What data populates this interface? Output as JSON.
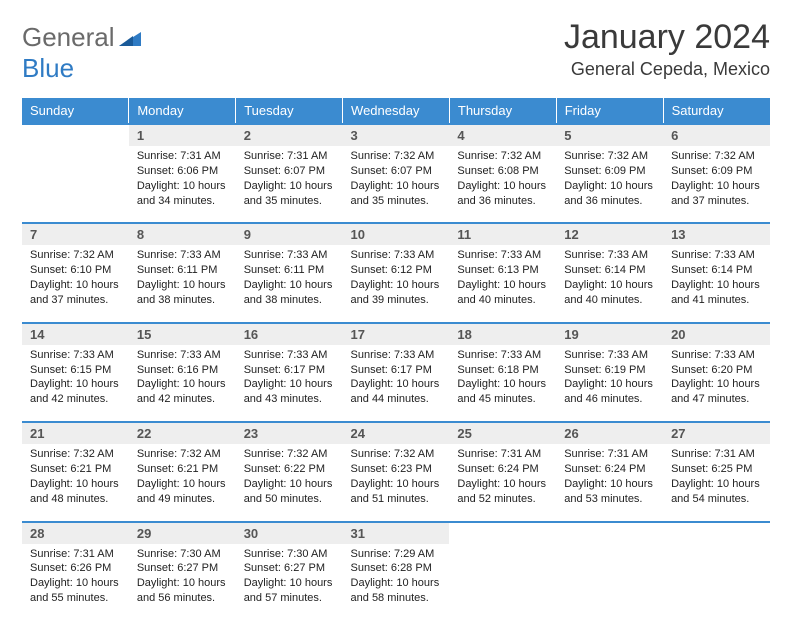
{
  "logo": {
    "text1": "General",
    "text2": "Blue"
  },
  "title": "January 2024",
  "location": "General Cepeda, Mexico",
  "colors": {
    "accent": "#3b8bd0",
    "header_bg": "#eeeeee",
    "text": "#222222",
    "logo_gray": "#6a6a6a",
    "logo_blue": "#2f7bc4"
  },
  "day_headers": [
    "Sunday",
    "Monday",
    "Tuesday",
    "Wednesday",
    "Thursday",
    "Friday",
    "Saturday"
  ],
  "weeks": [
    [
      null,
      {
        "n": "1",
        "sr": "Sunrise: 7:31 AM",
        "ss": "Sunset: 6:06 PM",
        "dl": "Daylight: 10 hours and 34 minutes."
      },
      {
        "n": "2",
        "sr": "Sunrise: 7:31 AM",
        "ss": "Sunset: 6:07 PM",
        "dl": "Daylight: 10 hours and 35 minutes."
      },
      {
        "n": "3",
        "sr": "Sunrise: 7:32 AM",
        "ss": "Sunset: 6:07 PM",
        "dl": "Daylight: 10 hours and 35 minutes."
      },
      {
        "n": "4",
        "sr": "Sunrise: 7:32 AM",
        "ss": "Sunset: 6:08 PM",
        "dl": "Daylight: 10 hours and 36 minutes."
      },
      {
        "n": "5",
        "sr": "Sunrise: 7:32 AM",
        "ss": "Sunset: 6:09 PM",
        "dl": "Daylight: 10 hours and 36 minutes."
      },
      {
        "n": "6",
        "sr": "Sunrise: 7:32 AM",
        "ss": "Sunset: 6:09 PM",
        "dl": "Daylight: 10 hours and 37 minutes."
      }
    ],
    [
      {
        "n": "7",
        "sr": "Sunrise: 7:32 AM",
        "ss": "Sunset: 6:10 PM",
        "dl": "Daylight: 10 hours and 37 minutes."
      },
      {
        "n": "8",
        "sr": "Sunrise: 7:33 AM",
        "ss": "Sunset: 6:11 PM",
        "dl": "Daylight: 10 hours and 38 minutes."
      },
      {
        "n": "9",
        "sr": "Sunrise: 7:33 AM",
        "ss": "Sunset: 6:11 PM",
        "dl": "Daylight: 10 hours and 38 minutes."
      },
      {
        "n": "10",
        "sr": "Sunrise: 7:33 AM",
        "ss": "Sunset: 6:12 PM",
        "dl": "Daylight: 10 hours and 39 minutes."
      },
      {
        "n": "11",
        "sr": "Sunrise: 7:33 AM",
        "ss": "Sunset: 6:13 PM",
        "dl": "Daylight: 10 hours and 40 minutes."
      },
      {
        "n": "12",
        "sr": "Sunrise: 7:33 AM",
        "ss": "Sunset: 6:14 PM",
        "dl": "Daylight: 10 hours and 40 minutes."
      },
      {
        "n": "13",
        "sr": "Sunrise: 7:33 AM",
        "ss": "Sunset: 6:14 PM",
        "dl": "Daylight: 10 hours and 41 minutes."
      }
    ],
    [
      {
        "n": "14",
        "sr": "Sunrise: 7:33 AM",
        "ss": "Sunset: 6:15 PM",
        "dl": "Daylight: 10 hours and 42 minutes."
      },
      {
        "n": "15",
        "sr": "Sunrise: 7:33 AM",
        "ss": "Sunset: 6:16 PM",
        "dl": "Daylight: 10 hours and 42 minutes."
      },
      {
        "n": "16",
        "sr": "Sunrise: 7:33 AM",
        "ss": "Sunset: 6:17 PM",
        "dl": "Daylight: 10 hours and 43 minutes."
      },
      {
        "n": "17",
        "sr": "Sunrise: 7:33 AM",
        "ss": "Sunset: 6:17 PM",
        "dl": "Daylight: 10 hours and 44 minutes."
      },
      {
        "n": "18",
        "sr": "Sunrise: 7:33 AM",
        "ss": "Sunset: 6:18 PM",
        "dl": "Daylight: 10 hours and 45 minutes."
      },
      {
        "n": "19",
        "sr": "Sunrise: 7:33 AM",
        "ss": "Sunset: 6:19 PM",
        "dl": "Daylight: 10 hours and 46 minutes."
      },
      {
        "n": "20",
        "sr": "Sunrise: 7:33 AM",
        "ss": "Sunset: 6:20 PM",
        "dl": "Daylight: 10 hours and 47 minutes."
      }
    ],
    [
      {
        "n": "21",
        "sr": "Sunrise: 7:32 AM",
        "ss": "Sunset: 6:21 PM",
        "dl": "Daylight: 10 hours and 48 minutes."
      },
      {
        "n": "22",
        "sr": "Sunrise: 7:32 AM",
        "ss": "Sunset: 6:21 PM",
        "dl": "Daylight: 10 hours and 49 minutes."
      },
      {
        "n": "23",
        "sr": "Sunrise: 7:32 AM",
        "ss": "Sunset: 6:22 PM",
        "dl": "Daylight: 10 hours and 50 minutes."
      },
      {
        "n": "24",
        "sr": "Sunrise: 7:32 AM",
        "ss": "Sunset: 6:23 PM",
        "dl": "Daylight: 10 hours and 51 minutes."
      },
      {
        "n": "25",
        "sr": "Sunrise: 7:31 AM",
        "ss": "Sunset: 6:24 PM",
        "dl": "Daylight: 10 hours and 52 minutes."
      },
      {
        "n": "26",
        "sr": "Sunrise: 7:31 AM",
        "ss": "Sunset: 6:24 PM",
        "dl": "Daylight: 10 hours and 53 minutes."
      },
      {
        "n": "27",
        "sr": "Sunrise: 7:31 AM",
        "ss": "Sunset: 6:25 PM",
        "dl": "Daylight: 10 hours and 54 minutes."
      }
    ],
    [
      {
        "n": "28",
        "sr": "Sunrise: 7:31 AM",
        "ss": "Sunset: 6:26 PM",
        "dl": "Daylight: 10 hours and 55 minutes."
      },
      {
        "n": "29",
        "sr": "Sunrise: 7:30 AM",
        "ss": "Sunset: 6:27 PM",
        "dl": "Daylight: 10 hours and 56 minutes."
      },
      {
        "n": "30",
        "sr": "Sunrise: 7:30 AM",
        "ss": "Sunset: 6:27 PM",
        "dl": "Daylight: 10 hours and 57 minutes."
      },
      {
        "n": "31",
        "sr": "Sunrise: 7:29 AM",
        "ss": "Sunset: 6:28 PM",
        "dl": "Daylight: 10 hours and 58 minutes."
      },
      null,
      null,
      null
    ]
  ]
}
